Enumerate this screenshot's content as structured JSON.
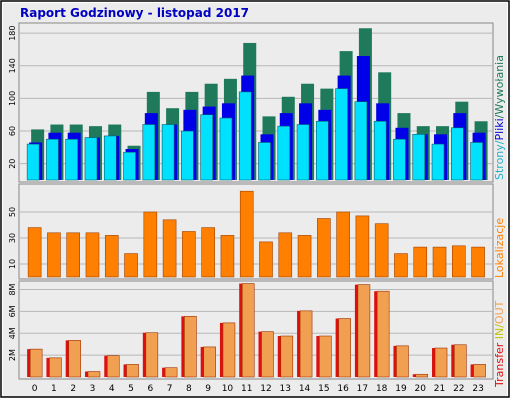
{
  "chart_data": [
    {
      "type": "bar",
      "title": "Raport Godzinowy -  listopad 2017",
      "categories": [
        "0",
        "1",
        "2",
        "3",
        "4",
        "5",
        "6",
        "7",
        "8",
        "9",
        "10",
        "11",
        "12",
        "13",
        "14",
        "15",
        "16",
        "17",
        "18",
        "19",
        "20",
        "21",
        "22",
        "23"
      ],
      "series_label": {
        "strony": "Strony",
        "sep1": "/",
        "pliki": "Pliki",
        "sep2": "/",
        "wywolania": "Wywołania"
      },
      "yticks": [
        "20",
        "60",
        "100",
        "140",
        "180"
      ],
      "ylim": [
        0,
        190
      ],
      "grid": true,
      "series": [
        {
          "name": "Wywołania",
          "color": "#1e7a5a",
          "values": [
            62,
            68,
            68,
            66,
            68,
            42,
            108,
            88,
            108,
            118,
            124,
            168,
            78,
            102,
            118,
            112,
            158,
            186,
            132,
            82,
            66,
            66,
            96,
            72
          ]
        },
        {
          "name": "Pliki",
          "color": "#0000e8",
          "values": [
            46,
            58,
            58,
            52,
            54,
            38,
            82,
            68,
            86,
            90,
            94,
            128,
            56,
            82,
            94,
            86,
            128,
            152,
            94,
            64,
            56,
            56,
            82,
            58
          ]
        },
        {
          "name": "Strony",
          "color": "#00e0ff",
          "values": [
            44,
            50,
            50,
            52,
            54,
            34,
            68,
            68,
            60,
            80,
            76,
            108,
            46,
            66,
            68,
            72,
            112,
            96,
            72,
            50,
            56,
            44,
            64,
            46
          ]
        }
      ]
    },
    {
      "type": "bar",
      "categories": [
        "0",
        "1",
        "2",
        "3",
        "4",
        "5",
        "6",
        "7",
        "8",
        "9",
        "10",
        "11",
        "12",
        "13",
        "14",
        "15",
        "16",
        "17",
        "18",
        "19",
        "20",
        "21",
        "22",
        "23"
      ],
      "series_label": "Lokalizacje",
      "yticks": [
        "10",
        "30",
        "50"
      ],
      "ylim": [
        0,
        70
      ],
      "grid": true,
      "series": [
        {
          "name": "Lokalizacje",
          "color": "#ff8000",
          "values": [
            38,
            34,
            34,
            34,
            32,
            18,
            50,
            44,
            35,
            38,
            32,
            66,
            27,
            34,
            32,
            45,
            50,
            47,
            41,
            18,
            23,
            23,
            24,
            23
          ]
        }
      ]
    },
    {
      "type": "bar",
      "categories": [
        "0",
        "1",
        "2",
        "3",
        "4",
        "5",
        "6",
        "7",
        "8",
        "9",
        "10",
        "11",
        "12",
        "13",
        "14",
        "15",
        "16",
        "17",
        "18",
        "19",
        "20",
        "21",
        "22",
        "23"
      ],
      "series_label": {
        "transfer": "Transfer",
        "in": "IN",
        "out": "OUT",
        "sep": " ",
        "slash": "/"
      },
      "yticks": [
        "2M",
        "4M",
        "6M",
        "8M"
      ],
      "ylim": [
        0,
        8.6
      ],
      "grid": true,
      "series": [
        {
          "name": "Transfer",
          "color": "#dd1010",
          "values": [
            2.55,
            1.75,
            3.35,
            0.5,
            1.95,
            1.15,
            4.05,
            0.85,
            5.55,
            2.75,
            4.95,
            8.55,
            4.15,
            3.75,
            6.05,
            3.75,
            5.35,
            8.45,
            7.85,
            2.85,
            0.25,
            2.65,
            2.95,
            1.15
          ]
        },
        {
          "name": "IN/OUT",
          "color": "#f0a050",
          "values": [
            2.55,
            1.75,
            3.35,
            0.5,
            1.95,
            1.15,
            4.05,
            0.85,
            5.55,
            2.75,
            4.95,
            8.55,
            4.15,
            3.75,
            6.05,
            3.75,
            5.35,
            8.45,
            7.85,
            2.85,
            0.25,
            2.65,
            2.95,
            1.15
          ]
        }
      ]
    }
  ]
}
